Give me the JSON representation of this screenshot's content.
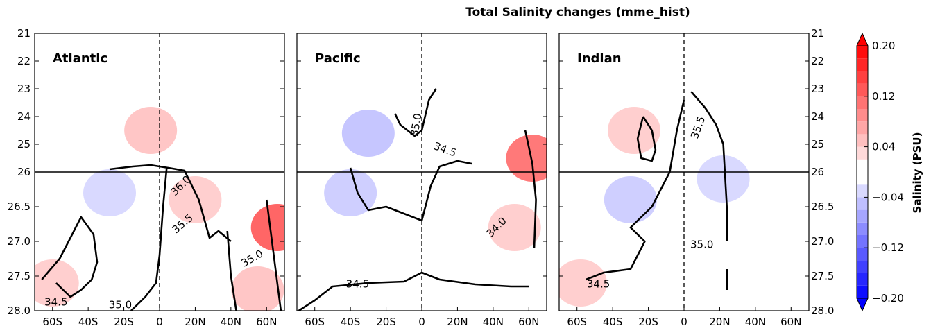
{
  "chart_data": {
    "type": "contour",
    "title": "Total Salinity changes (mme_hist)",
    "colorbar": {
      "label": "Salinity (PSU)",
      "range": [
        -0.2,
        0.2
      ],
      "tick_labels": [
        "0.20",
        "0.12",
        "0.04",
        "−0.04",
        "−0.12",
        "−0.20"
      ],
      "tick_values": [
        0.2,
        0.12,
        0.04,
        -0.04,
        -0.12,
        -0.2
      ],
      "levels": [
        -0.2,
        -0.18,
        -0.16,
        -0.14,
        -0.12,
        -0.1,
        -0.08,
        -0.06,
        -0.04,
        -0.02,
        0.02,
        0.04,
        0.06,
        0.08,
        0.1,
        0.12,
        0.14,
        0.16,
        0.18,
        0.2
      ],
      "colors": {
        "positive": "#ff0000",
        "negative": "#0000ff",
        "neutral": "#ffffff"
      }
    },
    "y_axis": {
      "ticks_upper": [
        21,
        22,
        23,
        24,
        25,
        26
      ],
      "ticks_lower": [
        26.5,
        27.0,
        27.5,
        28.0
      ],
      "tick_labels_upper": [
        "21",
        "22",
        "23",
        "24",
        "25",
        "26"
      ],
      "tick_labels_lower": [
        "26.5",
        "27.0",
        "27.5",
        "28.0"
      ],
      "split_at": 26,
      "inverted": true
    },
    "x_axis": {
      "range": [
        -70,
        70
      ],
      "ticks": [
        -60,
        -40,
        -20,
        0,
        20,
        40,
        60
      ],
      "tick_labels": [
        "60S",
        "40S",
        "20S",
        "0",
        "20N",
        "40N",
        "60N"
      ]
    },
    "panels": [
      {
        "name": "Atlantic",
        "labels": [
          {
            "text": "36.0",
            "lat": 12,
            "sigma": 26.2,
            "angle": -45
          },
          {
            "text": "35.5",
            "lat": 13,
            "sigma": 26.75,
            "angle": -40
          },
          {
            "text": "35.0",
            "lat": 52,
            "sigma": 27.25,
            "angle": -30
          },
          {
            "text": "34.5",
            "lat": -58,
            "sigma": 27.88,
            "angle": 0
          },
          {
            "text": "35.0",
            "lat": -22,
            "sigma": 27.92,
            "angle": 0
          }
        ],
        "thick_contours": [
          [
            [
              -66,
              27.55
            ],
            [
              -56,
              27.25
            ],
            [
              -44,
              26.65
            ],
            [
              -37,
              26.9
            ],
            [
              -35,
              27.3
            ],
            [
              -38,
              27.55
            ],
            [
              -44,
              27.7
            ],
            [
              -50,
              27.8
            ],
            [
              -58,
              27.6
            ]
          ],
          [
            [
              -28,
              25.9
            ],
            [
              -15,
              25.8
            ],
            [
              -5,
              25.75
            ],
            [
              5,
              25.85
            ],
            [
              14,
              25.95
            ],
            [
              22,
              26.4
            ],
            [
              28,
              26.95
            ],
            [
              33,
              26.85
            ],
            [
              40,
              27.0
            ]
          ],
          [
            [
              4,
              25.85
            ],
            [
              2,
              26.5
            ],
            [
              0,
              27.2
            ],
            [
              -2,
              27.6
            ],
            [
              -8,
              27.8
            ],
            [
              -16,
              28.0
            ]
          ],
          [
            [
              38,
              26.85
            ],
            [
              40,
              27.5
            ],
            [
              43,
              28.0
            ]
          ],
          [
            [
              60,
              26.4
            ],
            [
              64,
              27.2
            ],
            [
              66,
              27.6
            ],
            [
              68,
              28.0
            ]
          ]
        ],
        "anomalies": [
          {
            "lat": -60,
            "sigma": 27.6,
            "value": 0.05
          },
          {
            "lat": -5,
            "sigma": 24.5,
            "value": 0.06
          },
          {
            "lat": 20,
            "sigma": 26.4,
            "value": 0.05
          },
          {
            "lat": 55,
            "sigma": 27.7,
            "value": 0.06
          },
          {
            "lat": 66,
            "sigma": 26.8,
            "value": 0.16
          },
          {
            "lat": -28,
            "sigma": 26.3,
            "value": -0.04
          }
        ]
      },
      {
        "name": "Pacific",
        "labels": [
          {
            "text": "35.0",
            "lat": -3,
            "sigma": 24.3,
            "angle": -80
          },
          {
            "text": "34.5",
            "lat": 13,
            "sigma": 25.2,
            "angle": 20
          },
          {
            "text": "34.0",
            "lat": 42,
            "sigma": 26.8,
            "angle": -45
          },
          {
            "text": "34.5",
            "lat": -36,
            "sigma": 27.62,
            "angle": 0
          }
        ],
        "thick_contours": [
          [
            [
              -40,
              25.85
            ],
            [
              -36,
              26.3
            ],
            [
              -30,
              26.55
            ],
            [
              -20,
              26.5
            ],
            [
              -10,
              26.6
            ],
            [
              0,
              26.7
            ],
            [
              5,
              26.2
            ],
            [
              10,
              25.8
            ],
            [
              20,
              25.6
            ],
            [
              28,
              25.7
            ]
          ],
          [
            [
              -69,
              28.0
            ],
            [
              -60,
              27.85
            ],
            [
              -50,
              27.65
            ],
            [
              -30,
              27.6
            ],
            [
              -10,
              27.58
            ],
            [
              0,
              27.45
            ],
            [
              10,
              27.55
            ],
            [
              30,
              27.62
            ],
            [
              50,
              27.65
            ],
            [
              60,
              27.65
            ]
          ],
          [
            [
              -15,
              23.9
            ],
            [
              -12,
              24.3
            ],
            [
              -4,
              24.7
            ],
            [
              0,
              24.5
            ],
            [
              4,
              23.4
            ],
            [
              8,
              23.0
            ]
          ],
          [
            [
              58,
              24.5
            ],
            [
              62,
              25.7
            ],
            [
              64,
              26.4
            ],
            [
              63,
              27.1
            ]
          ]
        ],
        "anomalies": [
          {
            "lat": -30,
            "sigma": 24.6,
            "value": -0.06
          },
          {
            "lat": -40,
            "sigma": 26.3,
            "value": -0.05
          },
          {
            "lat": 52,
            "sigma": 26.8,
            "value": 0.05
          },
          {
            "lat": 62,
            "sigma": 25.5,
            "value": 0.14
          }
        ]
      },
      {
        "name": "Indian",
        "labels": [
          {
            "text": "35.5",
            "lat": 8,
            "sigma": 24.4,
            "angle": -70
          },
          {
            "text": "35.0",
            "lat": 10,
            "sigma": 27.05,
            "angle": 0
          },
          {
            "text": "34.5",
            "lat": -48,
            "sigma": 27.62,
            "angle": 0
          }
        ],
        "thick_contours": [
          [
            [
              -23,
              24.0
            ],
            [
              -18,
              24.5
            ],
            [
              -16,
              25.2
            ],
            [
              -18,
              25.6
            ],
            [
              -24,
              25.5
            ],
            [
              -26,
              24.8
            ],
            [
              -23,
              24.0
            ]
          ],
          [
            [
              0,
              23.4
            ],
            [
              -4,
              24.5
            ],
            [
              -8,
              26.0
            ],
            [
              -18,
              26.5
            ],
            [
              -30,
              26.8
            ],
            [
              -22,
              27.0
            ],
            [
              -30,
              27.4
            ],
            [
              -45,
              27.45
            ],
            [
              -55,
              27.55
            ]
          ],
          [
            [
              4,
              23.1
            ],
            [
              12,
              23.7
            ],
            [
              18,
              24.3
            ],
            [
              22,
              25.0
            ],
            [
              24,
              26.5
            ],
            [
              24,
              27.0
            ]
          ],
          [
            [
              24,
              27.4
            ],
            [
              24,
              27.7
            ]
          ]
        ],
        "anomalies": [
          {
            "lat": -28,
            "sigma": 24.5,
            "value": 0.05
          },
          {
            "lat": -30,
            "sigma": 26.4,
            "value": -0.05
          },
          {
            "lat": 22,
            "sigma": 26.1,
            "value": -0.04
          },
          {
            "lat": -58,
            "sigma": 27.6,
            "value": 0.05
          }
        ]
      }
    ]
  }
}
